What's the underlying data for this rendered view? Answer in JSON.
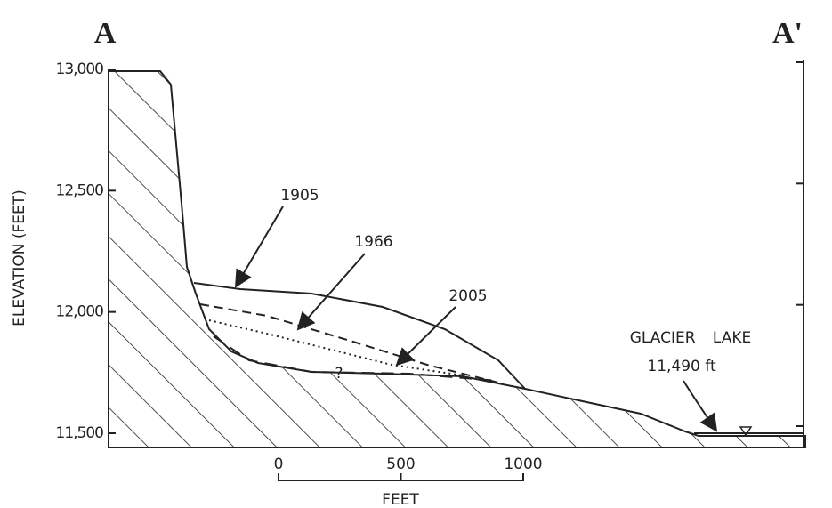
{
  "header": {
    "left_label": "A",
    "right_label": "A'"
  },
  "y_axis": {
    "label": "ELEVATION (FEET)",
    "ticks": [
      {
        "value": 13000,
        "label": "13,000"
      },
      {
        "value": 12500,
        "label": "12,500"
      },
      {
        "value": 12000,
        "label": "12,000"
      },
      {
        "value": 11500,
        "label": "11,500"
      }
    ]
  },
  "profiles": [
    {
      "label": "1905"
    },
    {
      "label": "1966"
    },
    {
      "label": "2005"
    }
  ],
  "uncertain_marker": "?",
  "lake": {
    "name": "GLACIER LAKE",
    "elevation": "11,490 ft"
  },
  "scale_bar": {
    "ticks": [
      0,
      500,
      1000
    ],
    "unit": "FEET"
  }
}
